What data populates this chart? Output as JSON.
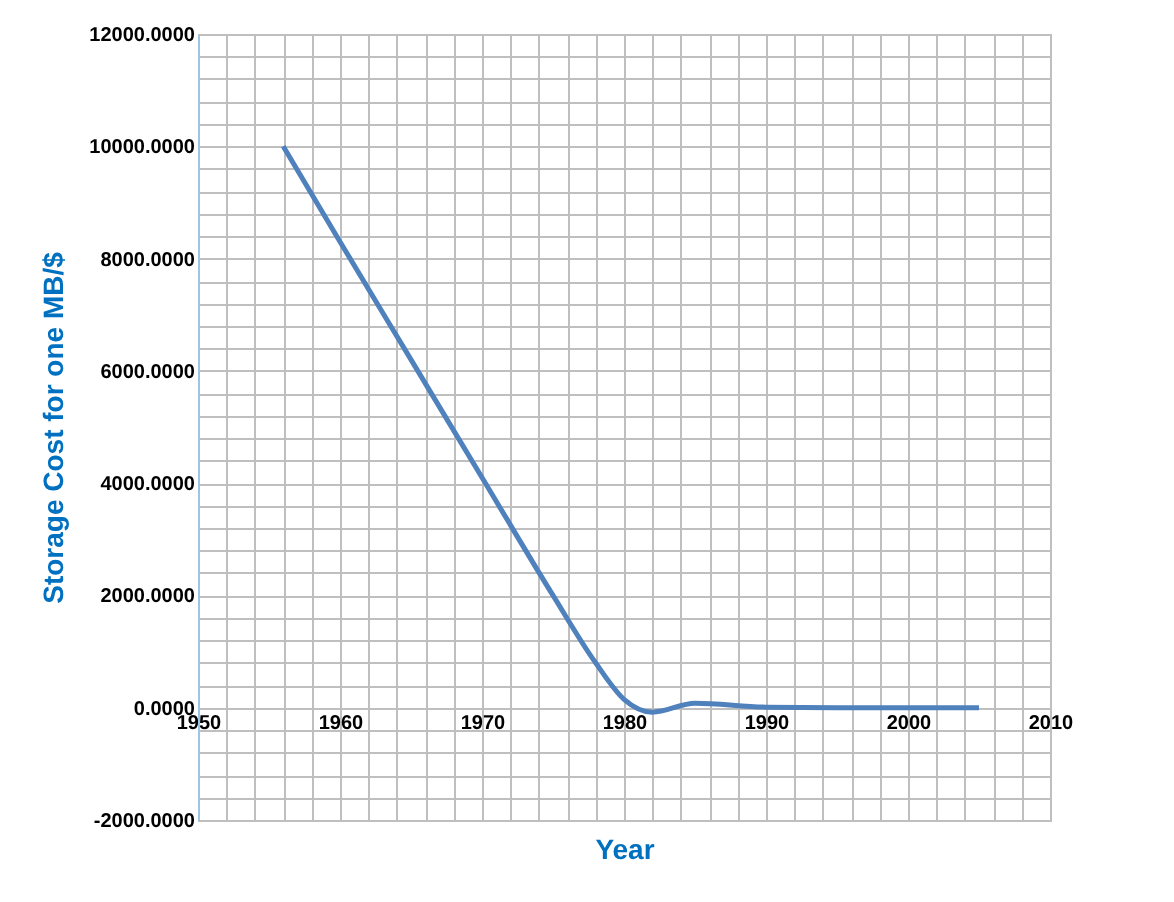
{
  "chart_data": {
    "type": "line",
    "xlabel": "Year",
    "ylabel": "Storage Cost for one MB/$",
    "x": [
      1956,
      1960,
      1965,
      1970,
      1975,
      1978,
      1980,
      1982,
      1985,
      1990,
      1995,
      2000,
      2005
    ],
    "series": [
      {
        "color": "#4f81bd",
        "values": [
          10000,
          8300,
          6200,
          4100,
          2000,
          800,
          150,
          -80,
          80,
          10,
          0,
          0,
          0
        ]
      }
    ],
    "xlim": [
      1950,
      2010
    ],
    "xticks": [
      1950,
      {
        "value": 1952,
        "label": null
      },
      {
        "value": 1954,
        "label": null
      },
      {
        "value": 1956,
        "label": null
      },
      {
        "value": 1958,
        "label": null
      },
      1960,
      {
        "value": 1962,
        "label": null
      },
      {
        "value": 1964,
        "label": null
      },
      {
        "value": 1966,
        "label": null
      },
      {
        "value": 1968,
        "label": null
      },
      1970,
      {
        "value": 1972,
        "label": null
      },
      {
        "value": 1974,
        "label": null
      },
      {
        "value": 1976,
        "label": null
      },
      {
        "value": 1978,
        "label": null
      },
      1980,
      {
        "value": 1982,
        "label": null
      },
      {
        "value": 1984,
        "label": null
      },
      {
        "value": 1986,
        "label": null
      },
      {
        "value": 1988,
        "label": null
      },
      1990,
      {
        "value": 1992,
        "label": null
      },
      {
        "value": 1994,
        "label": null
      },
      {
        "value": 1996,
        "label": null
      },
      {
        "value": 1998,
        "label": null
      },
      2000,
      {
        "value": 2002,
        "label": null
      },
      {
        "value": 2004,
        "label": null
      },
      {
        "value": 2006,
        "label": null
      },
      {
        "value": 2008,
        "label": null
      },
      2010
    ],
    "ylim": [
      -2000,
      12000
    ],
    "yticks": [
      {
        "value": -2000,
        "label": "-2000.0000"
      },
      {
        "value": -1600,
        "label": null
      },
      {
        "value": -1200,
        "label": null
      },
      {
        "value": -800,
        "label": null
      },
      {
        "value": -400,
        "label": null
      },
      {
        "value": 0,
        "label": "0.0000"
      },
      {
        "value": 400,
        "label": null
      },
      {
        "value": 800,
        "label": null
      },
      {
        "value": 1200,
        "label": null
      },
      {
        "value": 1600,
        "label": null
      },
      {
        "value": 2000,
        "label": "2000.0000"
      },
      {
        "value": 2400,
        "label": null
      },
      {
        "value": 2800,
        "label": null
      },
      {
        "value": 3200,
        "label": null
      },
      {
        "value": 3600,
        "label": null
      },
      {
        "value": 4000,
        "label": "4000.0000"
      },
      {
        "value": 4400,
        "label": null
      },
      {
        "value": 4800,
        "label": null
      },
      {
        "value": 5200,
        "label": null
      },
      {
        "value": 5600,
        "label": null
      },
      {
        "value": 6000,
        "label": "6000.0000"
      },
      {
        "value": 6400,
        "label": null
      },
      {
        "value": 6800,
        "label": null
      },
      {
        "value": 7200,
        "label": null
      },
      {
        "value": 7600,
        "label": null
      },
      {
        "value": 8000,
        "label": "8000.0000"
      },
      {
        "value": 8400,
        "label": null
      },
      {
        "value": 8800,
        "label": null
      },
      {
        "value": 9200,
        "label": null
      },
      {
        "value": 9600,
        "label": null
      },
      {
        "value": 10000,
        "label": "10000.0000"
      },
      {
        "value": 10400,
        "label": null
      },
      {
        "value": 10800,
        "label": null
      },
      {
        "value": 11200,
        "label": null
      },
      {
        "value": 11600,
        "label": null
      },
      {
        "value": 12000,
        "label": "12000.0000"
      }
    ],
    "grid": true,
    "marker": "none",
    "line_style": "solid",
    "legend": false
  }
}
